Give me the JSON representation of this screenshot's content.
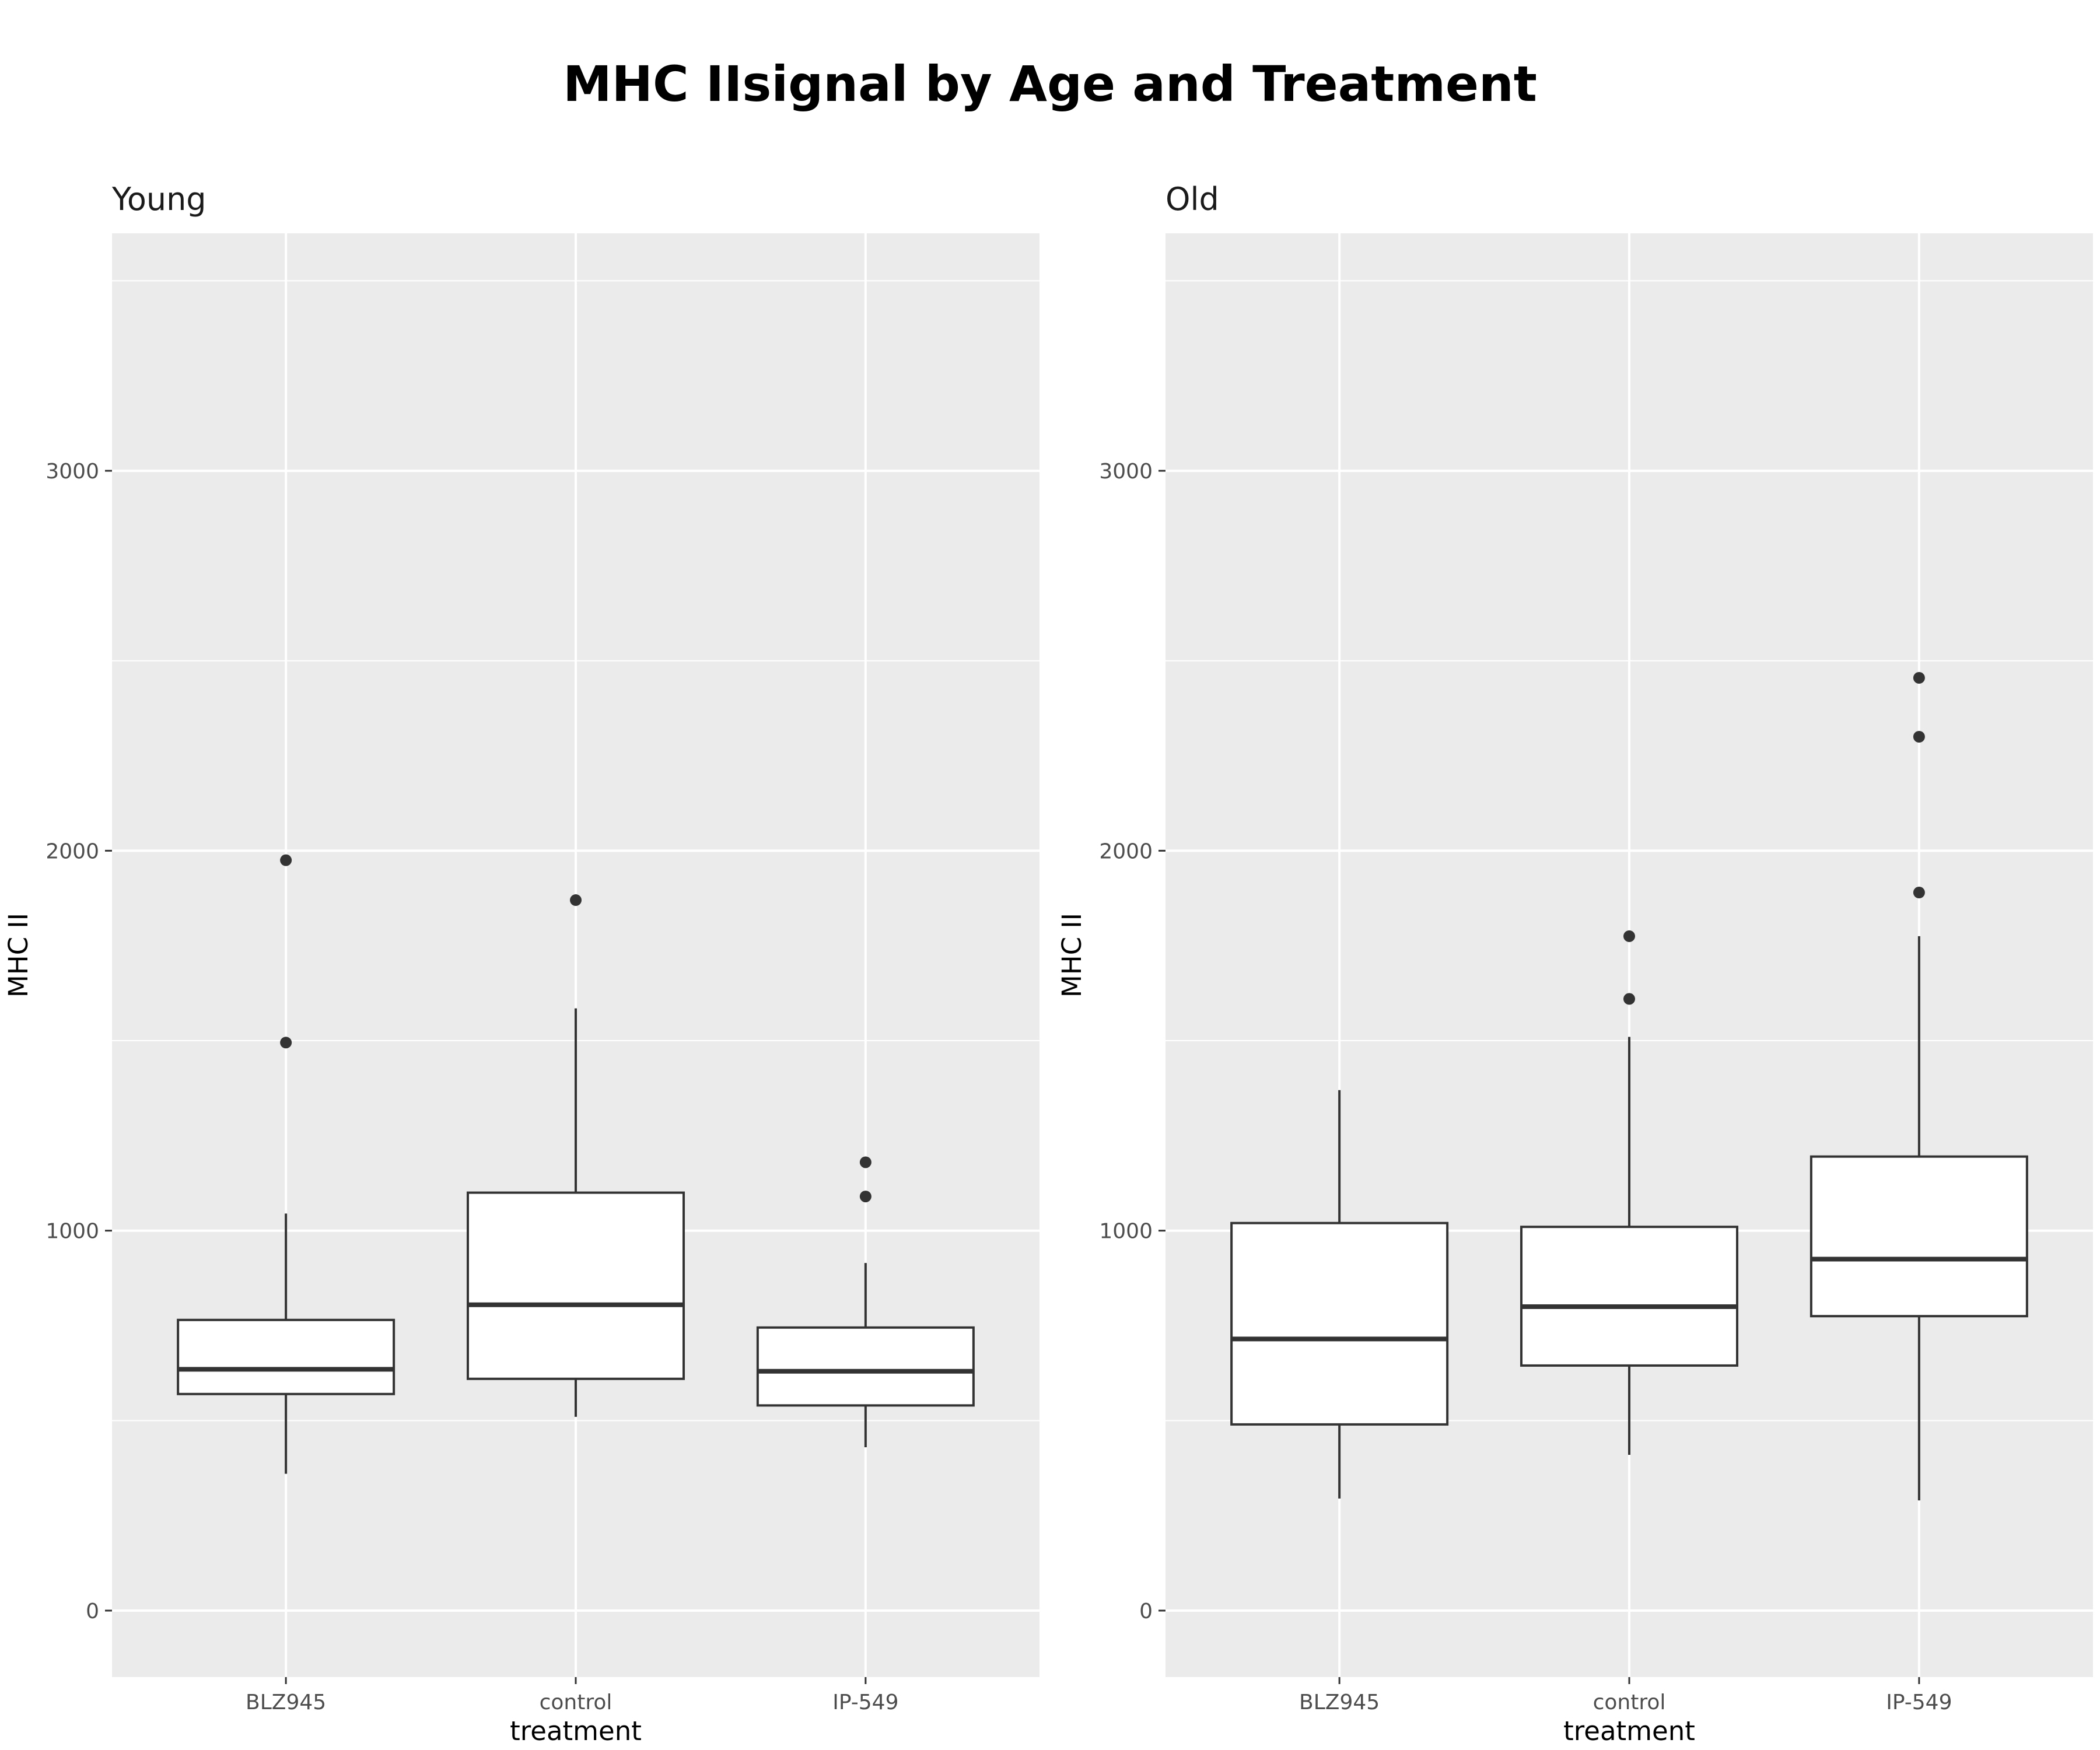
{
  "title": "MHC IIsignal by Age and Treatment",
  "chart_data": {
    "type": "box",
    "title": "MHC IIsignal by Age and Treatment",
    "xlabel": "treatment",
    "ylabel": "MHC II",
    "categories": [
      "BLZ945",
      "control",
      "IP-549"
    ],
    "ylim": [
      -175,
      3625
    ],
    "yticks": [
      0,
      1000,
      2000,
      3000
    ],
    "grid": true,
    "colors": {
      "panel_bg": "#ebebeb",
      "grid": "#ffffff",
      "box_fill": "#ffffff",
      "box_line": "#333333"
    },
    "panels": [
      {
        "name": "Young",
        "boxes": [
          {
            "category": "BLZ945",
            "lower": 360,
            "q1": 570,
            "median": 635,
            "q3": 765,
            "upper": 1045,
            "outliers": [
              1495,
              1975
            ]
          },
          {
            "category": "control",
            "lower": 510,
            "q1": 610,
            "median": 805,
            "q3": 1100,
            "upper": 1585,
            "outliers": [
              1870
            ]
          },
          {
            "category": "IP-549",
            "lower": 430,
            "q1": 540,
            "median": 630,
            "q3": 745,
            "upper": 915,
            "outliers": [
              1090,
              1180
            ]
          }
        ]
      },
      {
        "name": "Old",
        "boxes": [
          {
            "category": "BLZ945",
            "lower": 295,
            "q1": 490,
            "median": 715,
            "q3": 1020,
            "upper": 1370,
            "outliers": []
          },
          {
            "category": "control",
            "lower": 410,
            "q1": 645,
            "median": 800,
            "q3": 1010,
            "upper": 1510,
            "outliers": [
              1610,
              1775
            ]
          },
          {
            "category": "IP-549",
            "lower": 290,
            "q1": 775,
            "median": 925,
            "q3": 1195,
            "upper": 1775,
            "outliers": [
              1890,
              2300,
              2455
            ]
          }
        ]
      }
    ]
  }
}
